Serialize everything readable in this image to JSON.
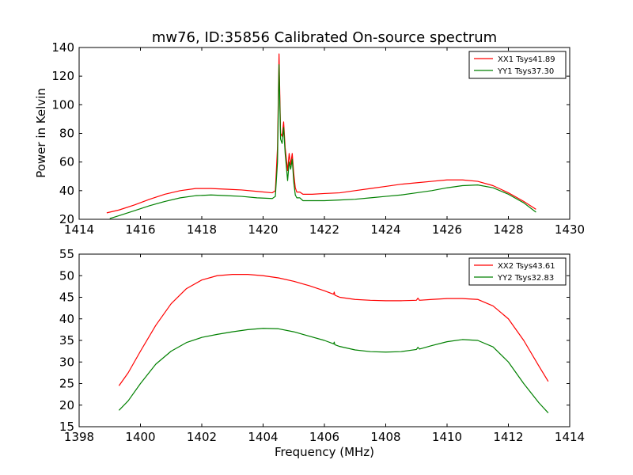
{
  "chart_data": [
    {
      "type": "line",
      "title": "mw76, ID:35856 Calibrated On-source spectrum",
      "xlabel": "",
      "ylabel": "Power in Kelvin",
      "xlim": [
        1414,
        1430
      ],
      "ylim": [
        20,
        140
      ],
      "xticks": [
        1414,
        1416,
        1418,
        1420,
        1422,
        1424,
        1426,
        1428,
        1430
      ],
      "yticks": [
        20,
        40,
        60,
        80,
        100,
        120,
        140
      ],
      "grid": false,
      "legend_position": "top-right",
      "series": [
        {
          "name": "XX1 Tsys41.89",
          "color": "#ff0000",
          "points": [
            [
              1414.9,
              24.5
            ],
            [
              1415.3,
              26.5
            ],
            [
              1415.8,
              30.0
            ],
            [
              1416.3,
              34.0
            ],
            [
              1416.8,
              37.5
            ],
            [
              1417.3,
              40.0
            ],
            [
              1417.8,
              41.5
            ],
            [
              1418.3,
              41.5
            ],
            [
              1418.8,
              41.0
            ],
            [
              1419.3,
              40.5
            ],
            [
              1419.8,
              39.5
            ],
            [
              1420.3,
              38.5
            ],
            [
              1420.4,
              40.0
            ],
            [
              1420.47,
              70.0
            ],
            [
              1420.52,
              135.5
            ],
            [
              1420.57,
              80.0
            ],
            [
              1420.62,
              78.0
            ],
            [
              1420.67,
              88.0
            ],
            [
              1420.72,
              70.0
            ],
            [
              1420.8,
              54.0
            ],
            [
              1420.85,
              66.0
            ],
            [
              1420.9,
              58.0
            ],
            [
              1420.95,
              66.0
            ],
            [
              1421.0,
              52.0
            ],
            [
              1421.05,
              42.0
            ],
            [
              1421.1,
              39.0
            ],
            [
              1421.2,
              39.0
            ],
            [
              1421.3,
              37.5
            ],
            [
              1421.6,
              37.5
            ],
            [
              1422.0,
              38.0
            ],
            [
              1422.5,
              38.5
            ],
            [
              1423.0,
              40.0
            ],
            [
              1423.5,
              41.5
            ],
            [
              1424.0,
              43.0
            ],
            [
              1424.5,
              44.5
            ],
            [
              1425.0,
              45.5
            ],
            [
              1425.5,
              46.5
            ],
            [
              1426.0,
              47.5
            ],
            [
              1426.5,
              47.5
            ],
            [
              1427.0,
              46.5
            ],
            [
              1427.5,
              43.5
            ],
            [
              1428.0,
              38.5
            ],
            [
              1428.5,
              32.5
            ],
            [
              1428.9,
              27.0
            ]
          ]
        },
        {
          "name": "YY1 Tsys37.30",
          "color": "#008000",
          "points": [
            [
              1415.0,
              20.5
            ],
            [
              1415.3,
              22.5
            ],
            [
              1415.8,
              26.0
            ],
            [
              1416.3,
              29.5
            ],
            [
              1416.8,
              32.5
            ],
            [
              1417.3,
              35.0
            ],
            [
              1417.8,
              36.5
            ],
            [
              1418.3,
              37.0
            ],
            [
              1418.8,
              36.5
            ],
            [
              1419.3,
              36.0
            ],
            [
              1419.8,
              35.0
            ],
            [
              1420.3,
              34.5
            ],
            [
              1420.4,
              36.0
            ],
            [
              1420.47,
              60.0
            ],
            [
              1420.52,
              128.0
            ],
            [
              1420.57,
              76.0
            ],
            [
              1420.62,
              73.0
            ],
            [
              1420.67,
              84.0
            ],
            [
              1420.72,
              66.0
            ],
            [
              1420.8,
              47.0
            ],
            [
              1420.85,
              60.0
            ],
            [
              1420.9,
              55.0
            ],
            [
              1420.95,
              62.0
            ],
            [
              1421.0,
              46.0
            ],
            [
              1421.05,
              37.0
            ],
            [
              1421.1,
              35.0
            ],
            [
              1421.2,
              35.0
            ],
            [
              1421.3,
              33.0
            ],
            [
              1421.6,
              33.0
            ],
            [
              1422.0,
              33.0
            ],
            [
              1422.5,
              33.5
            ],
            [
              1423.0,
              34.0
            ],
            [
              1423.5,
              35.0
            ],
            [
              1424.0,
              36.0
            ],
            [
              1424.5,
              37.0
            ],
            [
              1425.0,
              38.5
            ],
            [
              1425.5,
              40.0
            ],
            [
              1426.0,
              42.0
            ],
            [
              1426.5,
              43.5
            ],
            [
              1427.0,
              44.0
            ],
            [
              1427.5,
              42.0
            ],
            [
              1428.0,
              37.5
            ],
            [
              1428.5,
              31.5
            ],
            [
              1428.9,
              25.0
            ]
          ]
        }
      ]
    },
    {
      "type": "line",
      "title": "",
      "xlabel": "Frequency (MHz)",
      "ylabel": "",
      "xlim": [
        1398,
        1414
      ],
      "ylim": [
        15,
        55
      ],
      "xticks": [
        1398,
        1400,
        1402,
        1404,
        1406,
        1408,
        1410,
        1412,
        1414
      ],
      "yticks": [
        15,
        20,
        25,
        30,
        35,
        40,
        45,
        50,
        55
      ],
      "grid": false,
      "legend_position": "top-right",
      "series": [
        {
          "name": "XX2 Tsys43.61",
          "color": "#ff0000",
          "points": [
            [
              1399.3,
              24.5
            ],
            [
              1399.6,
              27.5
            ],
            [
              1400.0,
              32.5
            ],
            [
              1400.5,
              38.5
            ],
            [
              1401.0,
              43.5
            ],
            [
              1401.5,
              47.0
            ],
            [
              1402.0,
              49.0
            ],
            [
              1402.5,
              50.0
            ],
            [
              1403.0,
              50.3
            ],
            [
              1403.5,
              50.3
            ],
            [
              1404.0,
              50.0
            ],
            [
              1404.5,
              49.5
            ],
            [
              1405.0,
              48.7
            ],
            [
              1405.5,
              47.7
            ],
            [
              1406.0,
              46.5
            ],
            [
              1406.3,
              45.7
            ],
            [
              1406.32,
              46.2
            ],
            [
              1406.34,
              45.5
            ],
            [
              1406.5,
              45.0
            ],
            [
              1407.0,
              44.5
            ],
            [
              1407.5,
              44.3
            ],
            [
              1408.0,
              44.2
            ],
            [
              1408.5,
              44.2
            ],
            [
              1409.0,
              44.3
            ],
            [
              1409.05,
              44.8
            ],
            [
              1409.1,
              44.3
            ],
            [
              1409.5,
              44.5
            ],
            [
              1410.0,
              44.7
            ],
            [
              1410.5,
              44.7
            ],
            [
              1411.0,
              44.5
            ],
            [
              1411.5,
              43.0
            ],
            [
              1412.0,
              40.0
            ],
            [
              1412.5,
              35.0
            ],
            [
              1413.0,
              29.0
            ],
            [
              1413.3,
              25.5
            ]
          ]
        },
        {
          "name": "YY2 Tsys32.83",
          "color": "#008000",
          "points": [
            [
              1399.3,
              18.8
            ],
            [
              1399.6,
              21.0
            ],
            [
              1400.0,
              25.0
            ],
            [
              1400.5,
              29.5
            ],
            [
              1401.0,
              32.5
            ],
            [
              1401.5,
              34.5
            ],
            [
              1402.0,
              35.7
            ],
            [
              1402.5,
              36.4
            ],
            [
              1403.0,
              37.0
            ],
            [
              1403.5,
              37.5
            ],
            [
              1404.0,
              37.8
            ],
            [
              1404.5,
              37.7
            ],
            [
              1405.0,
              37.0
            ],
            [
              1405.5,
              36.0
            ],
            [
              1406.0,
              35.0
            ],
            [
              1406.3,
              34.2
            ],
            [
              1406.32,
              34.6
            ],
            [
              1406.34,
              34.0
            ],
            [
              1406.5,
              33.6
            ],
            [
              1407.0,
              32.8
            ],
            [
              1407.5,
              32.4
            ],
            [
              1408.0,
              32.3
            ],
            [
              1408.5,
              32.4
            ],
            [
              1409.0,
              32.9
            ],
            [
              1409.05,
              33.4
            ],
            [
              1409.1,
              33.0
            ],
            [
              1409.5,
              33.8
            ],
            [
              1410.0,
              34.7
            ],
            [
              1410.5,
              35.2
            ],
            [
              1411.0,
              35.0
            ],
            [
              1411.5,
              33.5
            ],
            [
              1412.0,
              30.0
            ],
            [
              1412.5,
              25.0
            ],
            [
              1413.0,
              20.5
            ],
            [
              1413.3,
              18.2
            ]
          ]
        }
      ]
    }
  ]
}
